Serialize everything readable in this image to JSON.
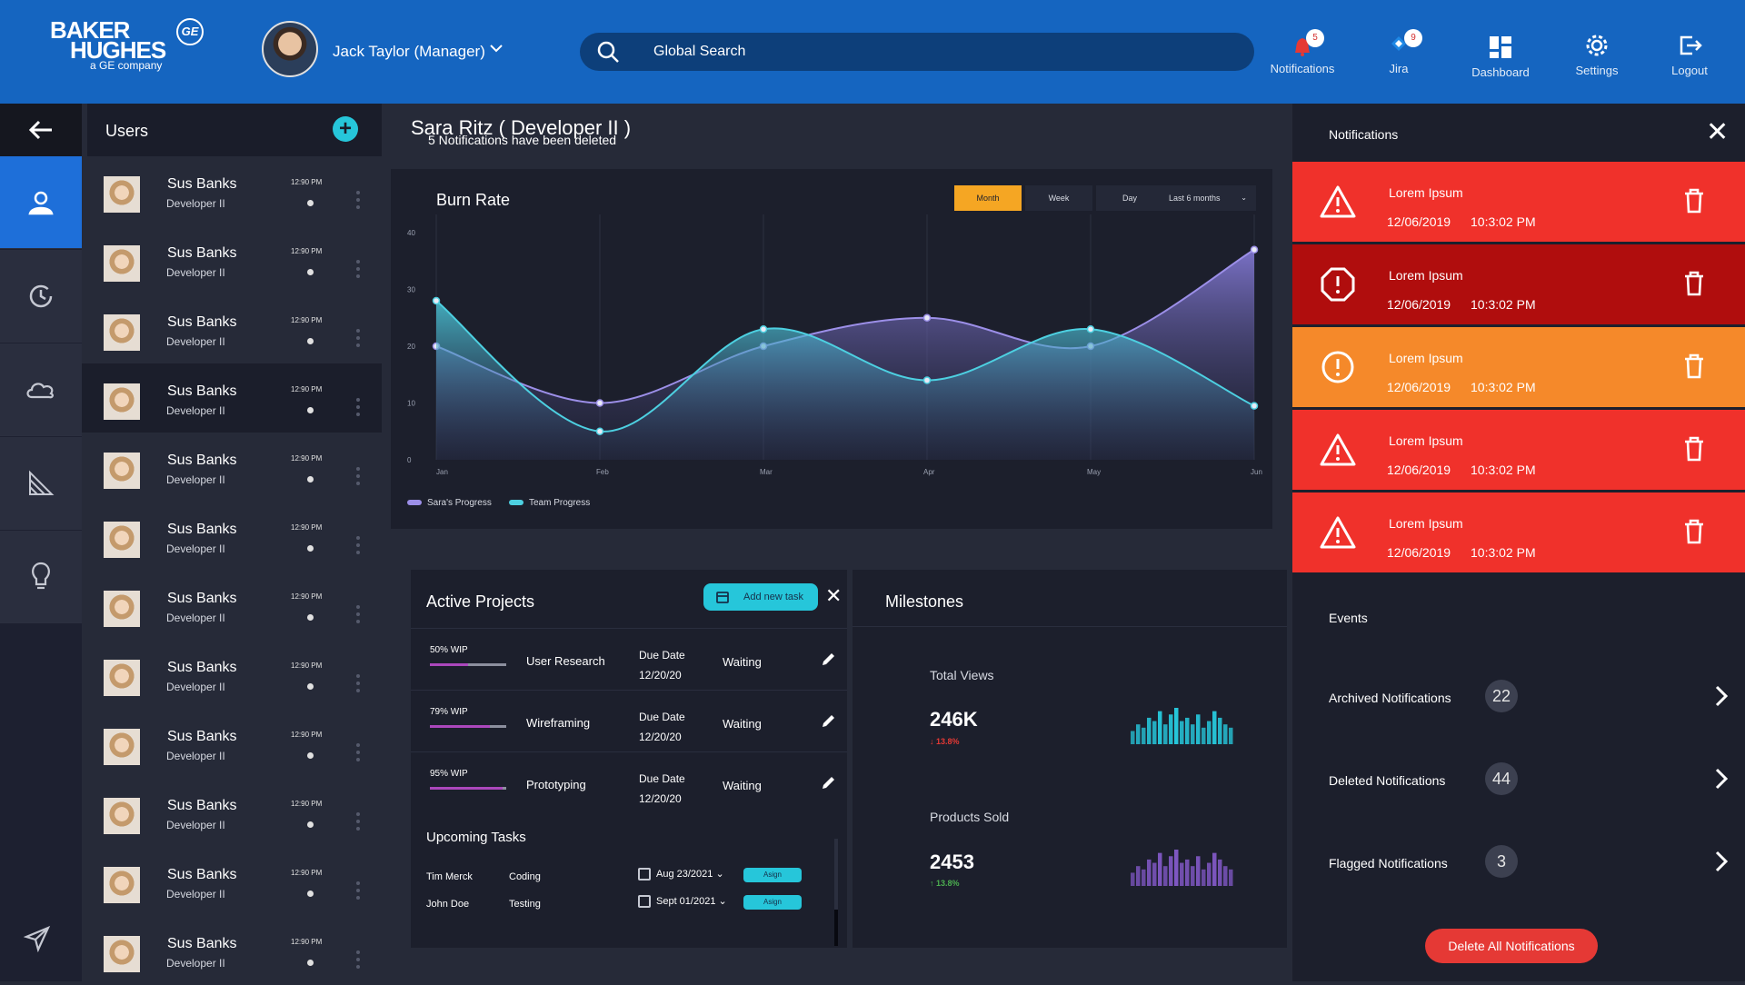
{
  "brand": {
    "line1": "BAKER",
    "line2": "HUGHES",
    "line3": "a GE company",
    "ge": "GE"
  },
  "header": {
    "user": "Jack Taylor (Manager)",
    "search_placeholder": "Global Search",
    "nav": [
      {
        "label": "Notifications",
        "badge": "5",
        "icon": "bell-icon"
      },
      {
        "label": "Jira",
        "badge": "9",
        "icon": "jira-icon"
      },
      {
        "label": "Dashboard",
        "icon": "dashboard-icon"
      },
      {
        "label": "Settings",
        "icon": "gear-icon"
      },
      {
        "label": "Logout",
        "icon": "logout-icon"
      }
    ]
  },
  "rail": {
    "icons": [
      "back-arrow-icon",
      "users-icon",
      "history-icon",
      "cloud-icon",
      "chart-icon",
      "lightbulb-icon",
      "send-icon"
    ],
    "active": "users-icon"
  },
  "users": {
    "title": "Users",
    "items": [
      {
        "name": "Sus Banks",
        "role": "Developer II",
        "time": "12:90 PM"
      },
      {
        "name": "Sus Banks",
        "role": "Developer II",
        "time": "12:90 PM"
      },
      {
        "name": "Sus Banks",
        "role": "Developer II",
        "time": "12:90 PM"
      },
      {
        "name": "Sus Banks",
        "role": "Developer II",
        "time": "12:90 PM"
      },
      {
        "name": "Sus Banks",
        "role": "Developer II",
        "time": "12:90 PM"
      },
      {
        "name": "Sus Banks",
        "role": "Developer II",
        "time": "12:90 PM"
      },
      {
        "name": "Sus Banks",
        "role": "Developer II",
        "time": "12:90 PM"
      },
      {
        "name": "Sus Banks",
        "role": "Developer II",
        "time": "12:90 PM"
      },
      {
        "name": "Sus Banks",
        "role": "Developer II",
        "time": "12:90 PM"
      },
      {
        "name": "Sus Banks",
        "role": "Developer II",
        "time": "12:90 PM"
      },
      {
        "name": "Sus Banks",
        "role": "Developer II",
        "time": "12:90 PM"
      },
      {
        "name": "Sus Banks",
        "role": "Developer II",
        "time": "12:90 PM"
      }
    ]
  },
  "person": {
    "title": "Sara Ritz ( Developer II )",
    "subtitle": "5 Notifications have been deleted"
  },
  "burn_rate": {
    "title": "Burn Rate",
    "filters": [
      "Month",
      "Week",
      "Day"
    ],
    "active_filter": "Month",
    "range": "Last 6 months"
  },
  "chart_data": {
    "type": "area",
    "title": "Burn Rate",
    "categories": [
      "Jan",
      "Feb",
      "Mar",
      "Apr",
      "May",
      "Jun"
    ],
    "y_ticks": [
      0,
      10,
      20,
      30,
      40
    ],
    "ylim": [
      0,
      40
    ],
    "legend_position": "bottom-left",
    "series": [
      {
        "name": "Sara's Progress",
        "color": "#9c8fe8",
        "values": [
          20,
          10,
          20,
          25,
          20,
          37
        ]
      },
      {
        "name": "Team Progress",
        "color": "#4dd0e1",
        "values": [
          28,
          5,
          23,
          14,
          23,
          9.5
        ]
      }
    ]
  },
  "projects": {
    "title": "Active Projects",
    "add_label": "Add new task",
    "rows": [
      {
        "wip": "50% WIP",
        "pct": 50,
        "task": "User Research",
        "due_label": "Due Date",
        "due": "12/20/20",
        "status": "Waiting"
      },
      {
        "wip": "79% WIP",
        "pct": 79,
        "task": "Wireframing",
        "due_label": "Due Date",
        "due": "12/20/20",
        "status": "Waiting"
      },
      {
        "wip": "95% WIP",
        "pct": 95,
        "task": "Prototyping",
        "due_label": "Due Date",
        "due": "12/20/20",
        "status": "Waiting"
      }
    ],
    "upcoming_title": "Upcoming Tasks",
    "upcoming": [
      {
        "name": "Tim Merck",
        "type": "Coding",
        "date": "Aug 23/2021",
        "action": "Asign"
      },
      {
        "name": "John Doe",
        "type": "Testing",
        "date": "Sept 01/2021",
        "action": "Asign"
      }
    ]
  },
  "milestones": {
    "title": "Milestones",
    "items": [
      {
        "label": "Total Views",
        "value": "246K",
        "change": "13.8%",
        "direction": "down",
        "color": "#26c6da",
        "bars": [
          4,
          6,
          5,
          8,
          7,
          10,
          6,
          9,
          11,
          7,
          8,
          6,
          9,
          5,
          7,
          10,
          8,
          6,
          5
        ]
      },
      {
        "label": "Products Sold",
        "value": "2453",
        "change": "13.8%",
        "direction": "up",
        "color": "#7e57c2",
        "bars": [
          4,
          6,
          5,
          8,
          7,
          10,
          6,
          9,
          11,
          7,
          8,
          6,
          9,
          5,
          7,
          10,
          8,
          6,
          5
        ]
      }
    ]
  },
  "notifications": {
    "title": "Notifications",
    "items": [
      {
        "title": "Lorem Ipsum",
        "date": "12/06/2019",
        "time": "10:3:02 PM",
        "color": "#f0312b",
        "icon": "warning-triangle-icon"
      },
      {
        "title": "Lorem Ipsum",
        "date": "12/06/2019",
        "time": "10:3:02 PM",
        "color": "#b00d0d",
        "icon": "alert-octagon-icon"
      },
      {
        "title": "Lorem Ipsum",
        "date": "12/06/2019",
        "time": "10:3:02 PM",
        "color": "#f5892a",
        "icon": "alert-circle-icon"
      },
      {
        "title": "Lorem Ipsum",
        "date": "12/06/2019",
        "time": "10:3:02 PM",
        "color": "#f0312b",
        "icon": "warning-triangle-icon"
      },
      {
        "title": "Lorem Ipsum",
        "date": "12/06/2019",
        "time": "10:3:02 PM",
        "color": "#f0312b",
        "icon": "warning-triangle-icon"
      }
    ],
    "events_title": "Events",
    "folders": [
      {
        "label": "Archived Notifications",
        "count": "22"
      },
      {
        "label": "Deleted Notifications",
        "count": "44"
      },
      {
        "label": "Flagged Notifications",
        "count": "3"
      }
    ],
    "delete_all": "Delete All Notifications"
  }
}
